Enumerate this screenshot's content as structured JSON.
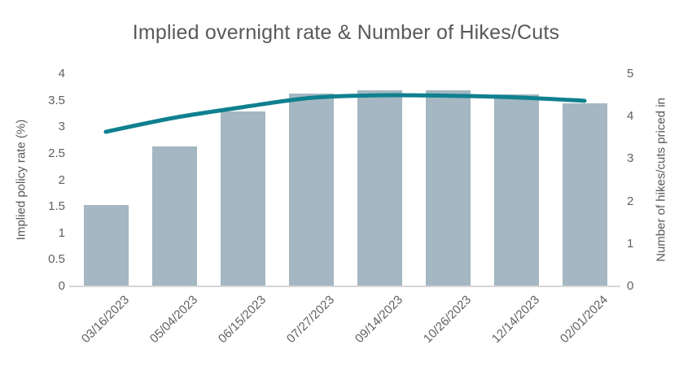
{
  "chart": {
    "title": "Implied overnight rate & Number of Hikes/Cuts",
    "left_axis_title": "Implied policy rate (%)",
    "right_axis_title": "Number of hikes/cuts priced in"
  },
  "chart_data": {
    "type": "bar+line",
    "title": "Implied overnight rate & Number of Hikes/Cuts",
    "categories": [
      "03/16/2023",
      "05/04/2023",
      "06/15/2023",
      "07/27/2023",
      "09/14/2023",
      "10/26/2023",
      "12/14/2023",
      "02/01/2024"
    ],
    "series": [
      {
        "name": "Implied policy rate (%)",
        "type": "bar",
        "axis": "left",
        "color": "#a4b7c2",
        "values": [
          1.53,
          2.63,
          3.3,
          3.64,
          3.7,
          3.69,
          3.62,
          3.45
        ]
      },
      {
        "name": "Number of hikes/cuts priced in",
        "type": "line",
        "axis": "right",
        "color": "#0f808f",
        "smooth": true,
        "values": [
          3.64,
          3.97,
          4.22,
          4.44,
          4.5,
          4.49,
          4.45,
          4.37
        ]
      }
    ],
    "left_axis": {
      "label": "Implied policy rate (%)",
      "min": 0,
      "max": 4,
      "step": 0.5,
      "ticks": [
        "0",
        "0.5",
        "1",
        "1.5",
        "2",
        "2.5",
        "3",
        "3.5",
        "4"
      ]
    },
    "right_axis": {
      "label": "Number of hikes/cuts priced in",
      "min": 0,
      "max": 5,
      "step": 1,
      "ticks": [
        "0",
        "1",
        "2",
        "3",
        "4",
        "5"
      ]
    },
    "grid": false,
    "legend": false
  },
  "colors": {
    "bar": "#a4b7c2",
    "line": "#0f808f",
    "text": "#595959",
    "tick_text": "#606060",
    "axis_line": "#d6d6d6",
    "background": "#ffffff"
  }
}
